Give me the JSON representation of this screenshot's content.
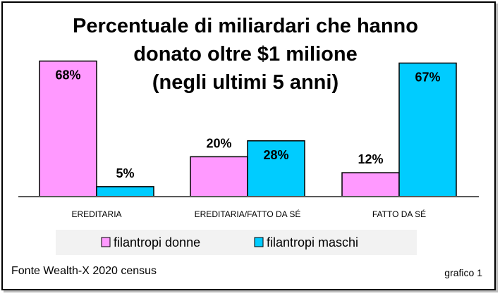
{
  "chart_data": {
    "type": "bar",
    "title_lines": [
      "Percentuale di miliardari che hanno",
      "donato oltre $1 milione",
      "(negli ultimi 5 anni)"
    ],
    "categories": [
      "EREDITARIA",
      "EREDITARIA/FATTO DA SÉ",
      "FATTO DA SÉ"
    ],
    "series": [
      {
        "name": "filantropi donne",
        "values": [
          68,
          20,
          12
        ],
        "labels": [
          "68%",
          "20%",
          "12%"
        ],
        "color": "#ff99ff"
      },
      {
        "name": "filantropi maschi",
        "values": [
          5,
          28,
          67
        ],
        "labels": [
          "5%",
          "28%",
          "67%"
        ],
        "color": "#00ccff"
      }
    ],
    "ylim": [
      0,
      70
    ],
    "grid": false,
    "legend_position": "bottom"
  },
  "footer": {
    "source": "Fonte Wealth-X 2020 census",
    "chart_number": "grafico 1"
  },
  "colors": {
    "background": "#ffffff",
    "legend_background": "#f2f2f2",
    "axis": "#595959"
  }
}
